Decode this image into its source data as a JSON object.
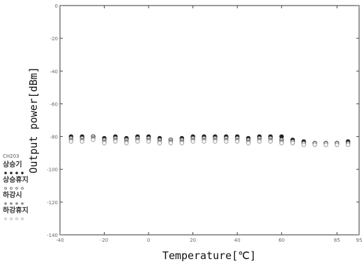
{
  "chart_data": {
    "type": "scatter",
    "xlabel": "Temperature[℃]",
    "ylabel": "Output power[dBm]",
    "xlim": [
      -40,
      95
    ],
    "ylim": [
      -140,
      0
    ],
    "x_ticks": [
      -40,
      -20,
      0,
      20,
      40,
      60,
      85,
      95
    ],
    "x_tick_labels": [
      "-40",
      "-20",
      "0",
      "20",
      "40",
      "60",
      "85",
      "95"
    ],
    "y_ticks": [
      0,
      -20,
      -40,
      -60,
      -80,
      -100,
      -120,
      -140
    ],
    "y_tick_labels": [
      "0",
      "-20",
      "-40",
      "-60",
      "-80",
      "-100",
      "-120",
      "-140"
    ],
    "grid": false,
    "legend_header": "CH203",
    "legend_position": "left-below-plot",
    "series": [
      {
        "name": "상승기",
        "marker": "filled-circle",
        "color": "#222222",
        "x": [
          -35,
          -30,
          -25,
          -20,
          -15,
          -10,
          -5,
          0,
          5,
          10,
          15,
          20,
          25,
          30,
          35,
          40,
          45,
          50,
          55,
          60,
          65,
          70,
          75,
          80,
          85,
          90
        ],
        "y": [
          -80,
          -80,
          -80,
          -81,
          -80,
          -81,
          -80,
          -80,
          -81,
          -82,
          -81,
          -80,
          -80,
          -80,
          -80,
          -80,
          -81,
          -80,
          -80,
          -80,
          -82,
          -83,
          -84,
          -84,
          -84,
          -83
        ]
      },
      {
        "name": "상승휴지",
        "marker": "open-circle",
        "color": "#555555",
        "x": [
          -35,
          -30,
          -25,
          -20,
          -15,
          -10,
          -5,
          0,
          5,
          10,
          15,
          20,
          25,
          30,
          35,
          40,
          45,
          50,
          55,
          60,
          65,
          70,
          75,
          80,
          85,
          90
        ],
        "y": [
          -81,
          -81,
          -80,
          -82,
          -81,
          -82,
          -81,
          -81,
          -82,
          -82,
          -82,
          -81,
          -81,
          -81,
          -81,
          -81,
          -82,
          -81,
          -81,
          -82,
          -83,
          -84,
          -84,
          -84,
          -84,
          -84
        ]
      },
      {
        "name": "하강시",
        "marker": "filled-circle",
        "color": "#888888",
        "x": [
          -35,
          -30,
          -25,
          -20,
          -15,
          -10,
          -5,
          0,
          5,
          10,
          15,
          20,
          25,
          30,
          35,
          40,
          45,
          50,
          55,
          60,
          65,
          70,
          75,
          80,
          85,
          90
        ],
        "y": [
          -82,
          -82,
          -81,
          -83,
          -82,
          -83,
          -82,
          -82,
          -83,
          -83,
          -83,
          -82,
          -82,
          -82,
          -82,
          -82,
          -83,
          -82,
          -82,
          -83,
          -84,
          -85,
          -85,
          -85,
          -85,
          -85
        ]
      },
      {
        "name": "하강휴지",
        "marker": "open-circle",
        "color": "#aaaaaa",
        "x": [
          -35,
          -30,
          -25,
          -20,
          -15,
          -10,
          -5,
          0,
          5,
          10,
          15,
          20,
          25,
          30,
          35,
          40,
          45,
          50,
          55,
          60,
          65,
          70,
          75,
          80,
          85,
          90
        ],
        "y": [
          -83,
          -83,
          -82,
          -84,
          -83,
          -84,
          -83,
          -83,
          -84,
          -84,
          -84,
          -83,
          -83,
          -83,
          -83,
          -83,
          -84,
          -83,
          -83,
          -84,
          -84,
          -85,
          -85,
          -85,
          -85,
          -85
        ]
      }
    ]
  }
}
